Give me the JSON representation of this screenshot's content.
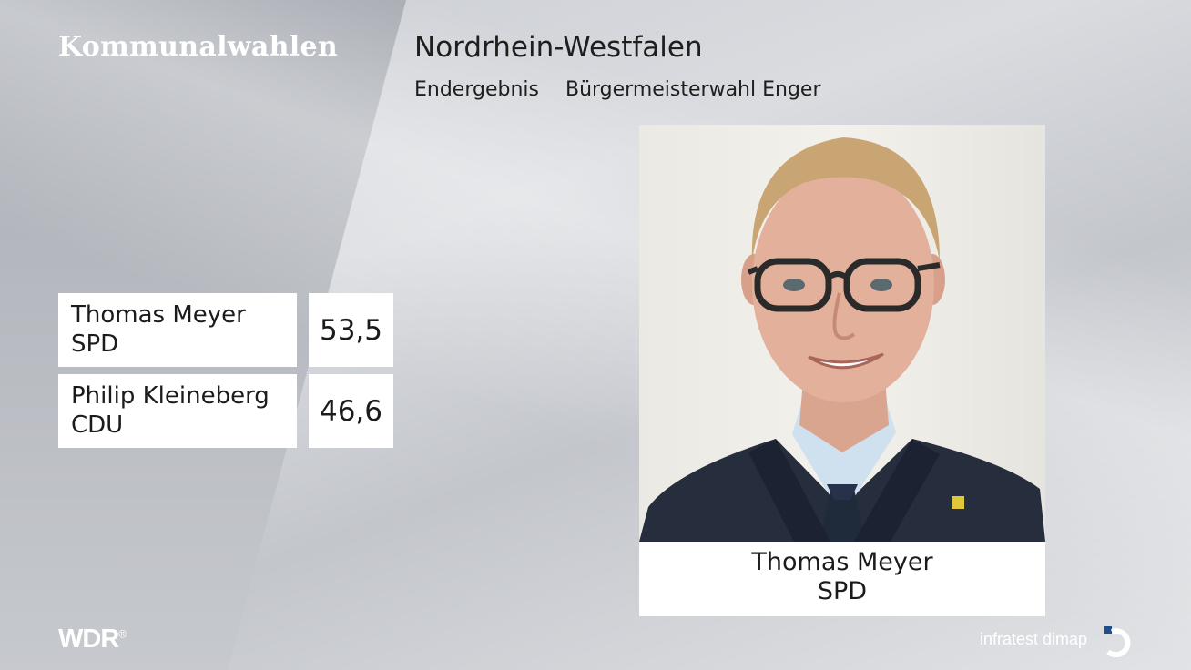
{
  "header": {
    "brand": "Kommunalwahlen",
    "region": "Nordrhein-Westfalen",
    "status": "Endergebnis",
    "election": "Bürgermeisterwahl Enger"
  },
  "results": [
    {
      "name": "Thomas Meyer",
      "party": "SPD",
      "value": "53,5"
    },
    {
      "name": "Philip Kleineberg",
      "party": "CDU",
      "value": "46,6"
    }
  ],
  "photo_caption": {
    "name": "Thomas Meyer",
    "party": "SPD"
  },
  "footer": {
    "broadcaster": "WDR",
    "registered": "®",
    "pollster": "infratest dimap"
  },
  "colors": {
    "background": "#d4d6da",
    "panel": "#ffffff",
    "text": "#1b1b1b"
  }
}
